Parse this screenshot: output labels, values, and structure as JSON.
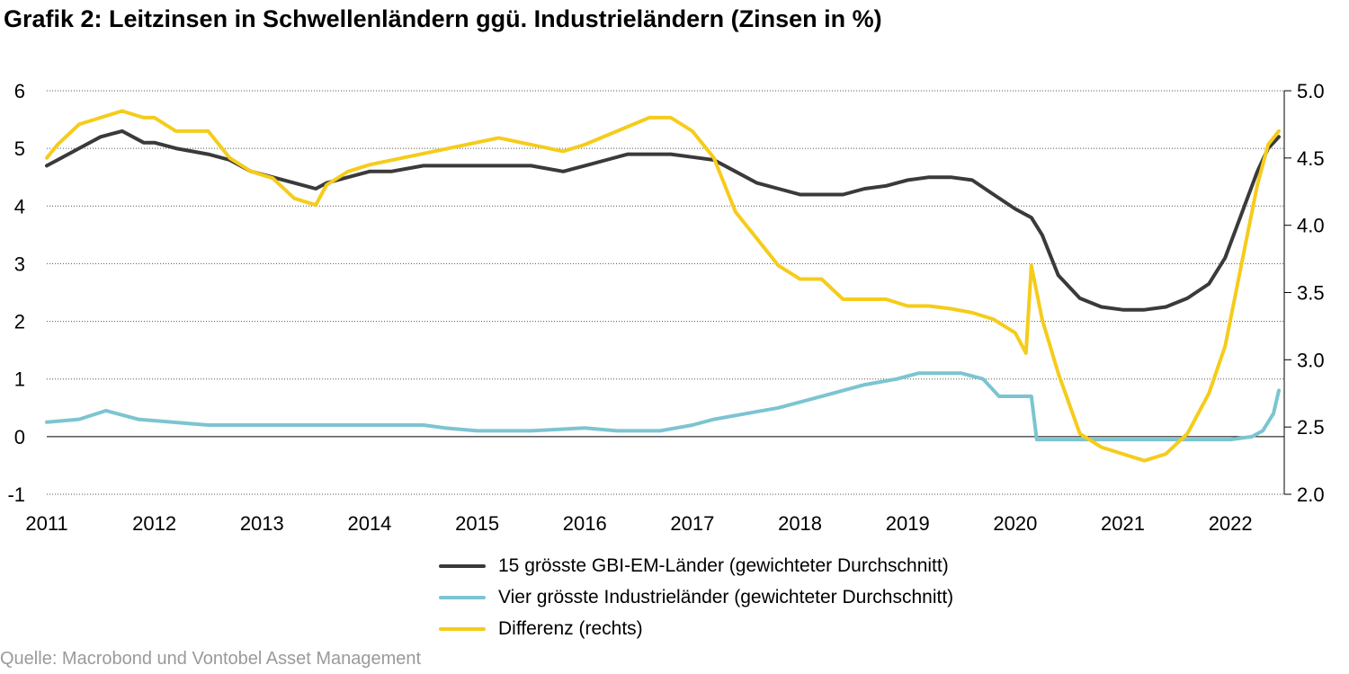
{
  "title": "Grafik 2: Leitzinsen in Schwellenländern ggü. Industrieländern (Zinsen in %)",
  "source": "Quelle: Macrobond und Vontobel Asset Management",
  "colors": {
    "em": "#3a3a3a",
    "dm": "#7cc4d1",
    "diff": "#f5cc1b",
    "grid": "#555555"
  },
  "chart_data": {
    "type": "line",
    "title": "Grafik 2: Leitzinsen in Schwellenländern ggü. Industrieländern (Zinsen in %)",
    "x_label": "",
    "xlim": [
      2011.0,
      2022.5
    ],
    "x_ticks": [
      "2011",
      "2012",
      "2013",
      "2014",
      "2015",
      "2016",
      "2017",
      "2018",
      "2019",
      "2020",
      "2021",
      "2022"
    ],
    "y_left": {
      "range": [
        -1,
        6
      ],
      "ticks": [
        "6",
        "5",
        "4",
        "3",
        "2",
        "1",
        "0",
        "-1"
      ]
    },
    "y_right": {
      "range": [
        2.0,
        5.0
      ],
      "ticks": [
        "5.0",
        "4.5",
        "4.0",
        "3.5",
        "3.0",
        "2.5",
        "2.0"
      ]
    },
    "grid": "horizontal dotted",
    "legend_position": "bottom",
    "series": [
      {
        "name": "15 grösste GBI-EM-Länder (gewichteter Durchschnitt)",
        "axis": "left",
        "x": [
          2011.0,
          2011.1,
          2011.3,
          2011.5,
          2011.7,
          2011.9,
          2012.0,
          2012.2,
          2012.5,
          2012.7,
          2012.9,
          2013.1,
          2013.3,
          2013.5,
          2013.6,
          2013.8,
          2014.0,
          2014.2,
          2014.5,
          2014.7,
          2015.0,
          2015.3,
          2015.5,
          2015.8,
          2016.0,
          2016.2,
          2016.4,
          2016.6,
          2016.8,
          2017.0,
          2017.2,
          2017.4,
          2017.6,
          2017.8,
          2018.0,
          2018.2,
          2018.4,
          2018.6,
          2018.8,
          2019.0,
          2019.2,
          2019.4,
          2019.6,
          2019.8,
          2020.0,
          2020.15,
          2020.25,
          2020.4,
          2020.6,
          2020.8,
          2021.0,
          2021.2,
          2021.4,
          2021.6,
          2021.8,
          2021.95,
          2022.05,
          2022.15,
          2022.25,
          2022.35,
          2022.45
        ],
        "y": [
          4.7,
          4.8,
          5.0,
          5.2,
          5.3,
          5.1,
          5.1,
          5.0,
          4.9,
          4.8,
          4.6,
          4.5,
          4.4,
          4.3,
          4.4,
          4.5,
          4.6,
          4.6,
          4.7,
          4.7,
          4.7,
          4.7,
          4.7,
          4.6,
          4.7,
          4.8,
          4.9,
          4.9,
          4.9,
          4.85,
          4.8,
          4.6,
          4.4,
          4.3,
          4.2,
          4.2,
          4.2,
          4.3,
          4.35,
          4.45,
          4.5,
          4.5,
          4.45,
          4.2,
          3.95,
          3.8,
          3.5,
          2.8,
          2.4,
          2.25,
          2.2,
          2.2,
          2.25,
          2.4,
          2.65,
          3.1,
          3.6,
          4.1,
          4.6,
          5.0,
          5.2
        ]
      },
      {
        "name": "Vier grösste Industrieländer (gewichteter Durchschnitt)",
        "axis": "left",
        "x": [
          2011.0,
          2011.3,
          2011.55,
          2011.85,
          2012.5,
          2013.5,
          2014.5,
          2014.7,
          2015.0,
          2015.5,
          2016.0,
          2016.3,
          2016.7,
          2017.0,
          2017.2,
          2017.5,
          2017.8,
          2018.0,
          2018.3,
          2018.6,
          2018.9,
          2019.1,
          2019.5,
          2019.7,
          2019.85,
          2020.15,
          2020.2,
          2020.5,
          2021.0,
          2021.5,
          2022.0,
          2022.2,
          2022.3,
          2022.4,
          2022.45
        ],
        "y": [
          0.25,
          0.3,
          0.45,
          0.3,
          0.2,
          0.2,
          0.2,
          0.15,
          0.1,
          0.1,
          0.15,
          0.1,
          0.1,
          0.2,
          0.3,
          0.4,
          0.5,
          0.6,
          0.75,
          0.9,
          1.0,
          1.1,
          1.1,
          1.0,
          0.7,
          0.7,
          -0.05,
          -0.05,
          -0.05,
          -0.05,
          -0.05,
          0.0,
          0.1,
          0.4,
          0.8
        ]
      },
      {
        "name": "Differenz (rechts)",
        "axis": "right",
        "x": [
          2011.0,
          2011.1,
          2011.3,
          2011.5,
          2011.7,
          2011.9,
          2012.0,
          2012.2,
          2012.5,
          2012.7,
          2012.9,
          2013.1,
          2013.3,
          2013.5,
          2013.6,
          2013.8,
          2014.0,
          2014.3,
          2014.6,
          2014.9,
          2015.2,
          2015.5,
          2015.8,
          2016.0,
          2016.3,
          2016.6,
          2016.8,
          2017.0,
          2017.2,
          2017.4,
          2017.6,
          2017.8,
          2018.0,
          2018.2,
          2018.4,
          2018.6,
          2018.8,
          2019.0,
          2019.2,
          2019.4,
          2019.6,
          2019.8,
          2020.0,
          2020.1,
          2020.15,
          2020.25,
          2020.4,
          2020.6,
          2020.8,
          2021.0,
          2021.2,
          2021.4,
          2021.6,
          2021.8,
          2021.95,
          2022.05,
          2022.15,
          2022.25,
          2022.35,
          2022.45
        ],
        "y": [
          4.5,
          4.6,
          4.75,
          4.8,
          4.85,
          4.8,
          4.8,
          4.7,
          4.7,
          4.5,
          4.4,
          4.35,
          4.2,
          4.15,
          4.3,
          4.4,
          4.45,
          4.5,
          4.55,
          4.6,
          4.65,
          4.6,
          4.55,
          4.6,
          4.7,
          4.8,
          4.8,
          4.7,
          4.5,
          4.1,
          3.9,
          3.7,
          3.6,
          3.6,
          3.45,
          3.45,
          3.45,
          3.4,
          3.4,
          3.38,
          3.35,
          3.3,
          3.2,
          3.05,
          3.7,
          3.3,
          2.9,
          2.45,
          2.35,
          2.3,
          2.25,
          2.3,
          2.45,
          2.75,
          3.1,
          3.5,
          3.9,
          4.3,
          4.6,
          4.7
        ]
      }
    ]
  }
}
